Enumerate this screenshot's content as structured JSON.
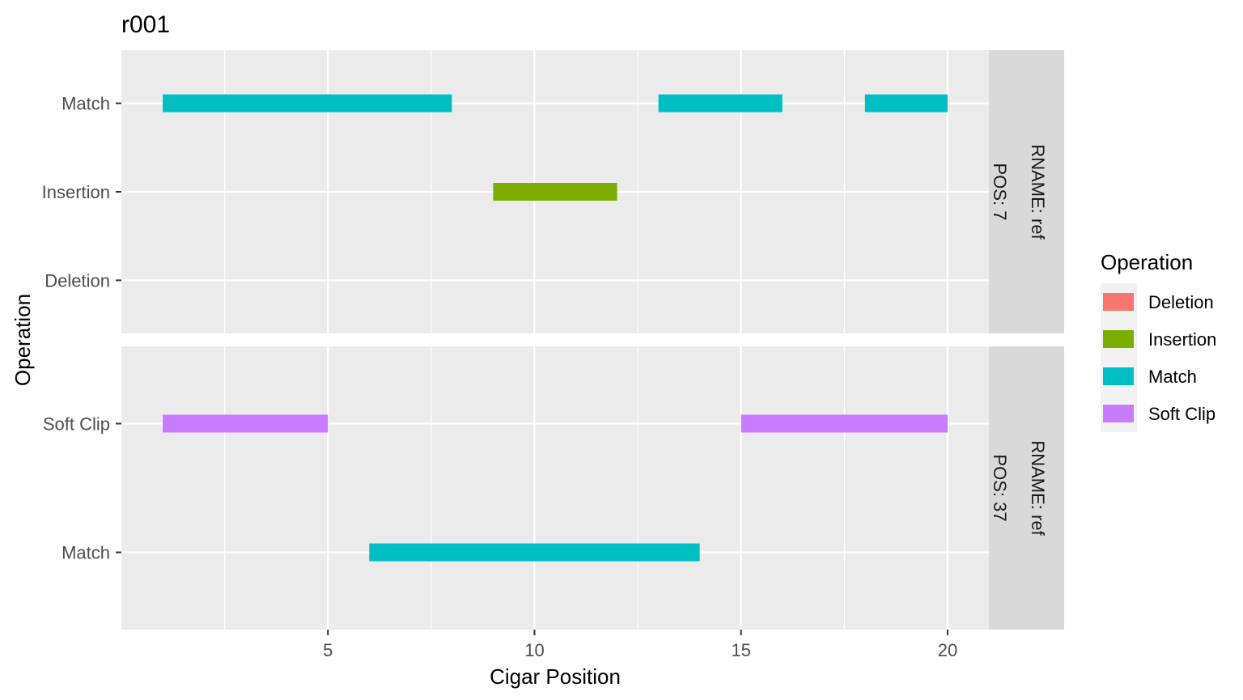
{
  "chart_data": {
    "type": "bar",
    "subtype": "faceted-segment",
    "title": "r001",
    "xlabel": "Cigar Position",
    "ylabel": "Operation",
    "xlim": [
      0,
      21
    ],
    "x_ticks": [
      5,
      10,
      15,
      20
    ],
    "grid": true,
    "legend": {
      "title": "Operation",
      "placement": "right",
      "entries": [
        {
          "name": "Deletion",
          "color": "#F8766D"
        },
        {
          "name": "Insertion",
          "color": "#7CAE00"
        },
        {
          "name": "Match",
          "color": "#00BFC4"
        },
        {
          "name": "Soft Clip",
          "color": "#C77CFF"
        }
      ]
    },
    "facets": [
      {
        "strip_label_1": "RNAME: ref",
        "strip_label_2": "POS: 7",
        "categories": [
          "Deletion",
          "Insertion",
          "Match"
        ],
        "segments": [
          {
            "operation": "Match",
            "start": 1,
            "end": 8
          },
          {
            "operation": "Insertion",
            "start": 9,
            "end": 12
          },
          {
            "operation": "Match",
            "start": 13,
            "end": 16
          },
          {
            "operation": "Match",
            "start": 18,
            "end": 20
          }
        ]
      },
      {
        "strip_label_1": "RNAME: ref",
        "strip_label_2": "POS: 37",
        "categories": [
          "Match",
          "Soft Clip"
        ],
        "segments": [
          {
            "operation": "Soft Clip",
            "start": 1,
            "end": 5
          },
          {
            "operation": "Match",
            "start": 6,
            "end": 14
          },
          {
            "operation": "Soft Clip",
            "start": 15,
            "end": 20
          }
        ]
      }
    ]
  }
}
